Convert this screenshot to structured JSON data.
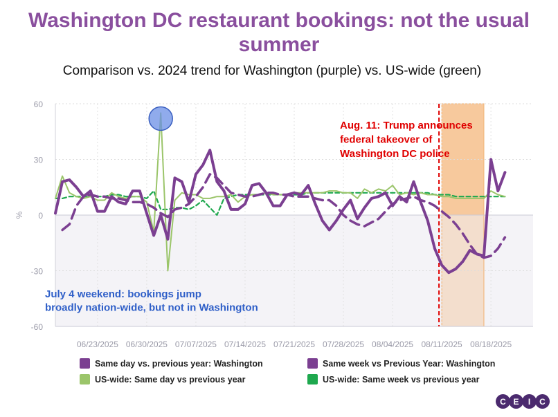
{
  "chart_data": {
    "type": "line",
    "title": "Washington DC restaurant bookings: not the usual summer",
    "subtitle": "Comparison vs. 2024 trend for Washington (purple) vs. US-wide (green)",
    "ylabel": "%",
    "ylim": [
      -60,
      60
    ],
    "yticks": [
      60,
      30,
      0,
      -30,
      -60
    ],
    "x_start": "2025-06-17",
    "x_end": "2025-08-24",
    "xticks": [
      "06/23/2025",
      "06/30/2025",
      "07/07/2025",
      "07/14/2025",
      "07/21/2025",
      "07/28/2025",
      "08/04/2025",
      "08/11/2025",
      "08/18/2025"
    ],
    "series": [
      {
        "name": "Same day vs. previous year: Washington",
        "color": "#7b3f91",
        "style": "solid-thick",
        "values": [
          1,
          18,
          19,
          15,
          10,
          13,
          2,
          2,
          10,
          7,
          6,
          13,
          13,
          1,
          -11,
          0,
          -13,
          20,
          18,
          7,
          22,
          27,
          35,
          18,
          13,
          3,
          3,
          6,
          16,
          17,
          12,
          5,
          5,
          11,
          12,
          11,
          16,
          6,
          -3,
          -8,
          -3,
          3,
          8,
          -2,
          4,
          9,
          10,
          12,
          5,
          10,
          7,
          18,
          7,
          -3,
          -18,
          -27,
          -31,
          -29,
          -25,
          -19,
          -21,
          -22,
          30,
          13,
          23
        ],
        "start": 0
      },
      {
        "name": "Same week vs Previous Year: Washington",
        "color": "#7b3f91",
        "style": "dashed-thick",
        "values": [
          -8,
          -5,
          5,
          10,
          11,
          10,
          10,
          9,
          9,
          8,
          7,
          7,
          6,
          4,
          1,
          -1,
          3,
          4,
          6,
          10,
          15,
          22,
          20,
          16,
          12,
          11,
          10,
          10,
          11,
          12,
          12,
          11,
          11,
          10,
          10,
          10,
          9,
          8,
          8,
          5,
          0,
          -3,
          -5,
          -6,
          -4,
          -2,
          2,
          6,
          8,
          9,
          10,
          8,
          7,
          5,
          2,
          -1,
          -5,
          -10,
          -16,
          -21,
          -23,
          -22,
          -18,
          -12
        ],
        "start": 1
      },
      {
        "name": "US-wide: Same day vs previous year",
        "color": "#9bc56a",
        "style": "solid-thin",
        "values": [
          9,
          21,
          12,
          10,
          9,
          10,
          8,
          8,
          12,
          10,
          9,
          10,
          10,
          7,
          -9,
          55,
          -30,
          8,
          12,
          11,
          11,
          9,
          9,
          10,
          10,
          11,
          7,
          10,
          11,
          11,
          12,
          11,
          11,
          11,
          12,
          12,
          12,
          12,
          12,
          13,
          13,
          12,
          12,
          9,
          14,
          12,
          14,
          13,
          16,
          11,
          12,
          11,
          12,
          11,
          11,
          10,
          10,
          9,
          9,
          9,
          9,
          9,
          13,
          11,
          10
        ],
        "start": 0
      },
      {
        "name": "US-wide: Same week vs previous year",
        "color": "#1ea84e",
        "style": "dashed-thin",
        "values": [
          9,
          9,
          10,
          10,
          10,
          10,
          10,
          10,
          11,
          11,
          10,
          10,
          10,
          9,
          13,
          3,
          3,
          4,
          4,
          3,
          5,
          8,
          4,
          0,
          9,
          10,
          11,
          11,
          11,
          11,
          11,
          11,
          11,
          11,
          11,
          11,
          12,
          12,
          12,
          12,
          12,
          12,
          12,
          12,
          12,
          12,
          12,
          12,
          12,
          12,
          12,
          12,
          12,
          12,
          11,
          11,
          11,
          10,
          10,
          10,
          10,
          10,
          10,
          10,
          10
        ],
        "start": 0
      }
    ],
    "annotations": [
      {
        "text": "Aug. 11: Trump announces federal takeover of Washington DC police",
        "lines": [
          "Aug. 11: Trump announces",
          "federal takeover of",
          "Washington DC police"
        ],
        "color": "#e00000"
      },
      {
        "text": "July 4 weekend: bookings jump broadly nation-wide, but not in Washington",
        "lines": [
          "July 4 weekend: bookings jump",
          "broadly nation-wide, but not in Washington"
        ],
        "color": "#2f5fc8"
      }
    ],
    "event_line_date": "2025-08-11",
    "highlight_range": [
      "2025-08-11",
      "2025-08-17"
    ]
  },
  "logo_letters": [
    "C",
    "E",
    "I",
    "C"
  ],
  "colors": {
    "purple": "#7b3f91",
    "light_green": "#9bc56a",
    "green": "#1ea84e",
    "red": "#e00000",
    "blue": "#2f5fc8",
    "orange": "#f6c08c"
  }
}
